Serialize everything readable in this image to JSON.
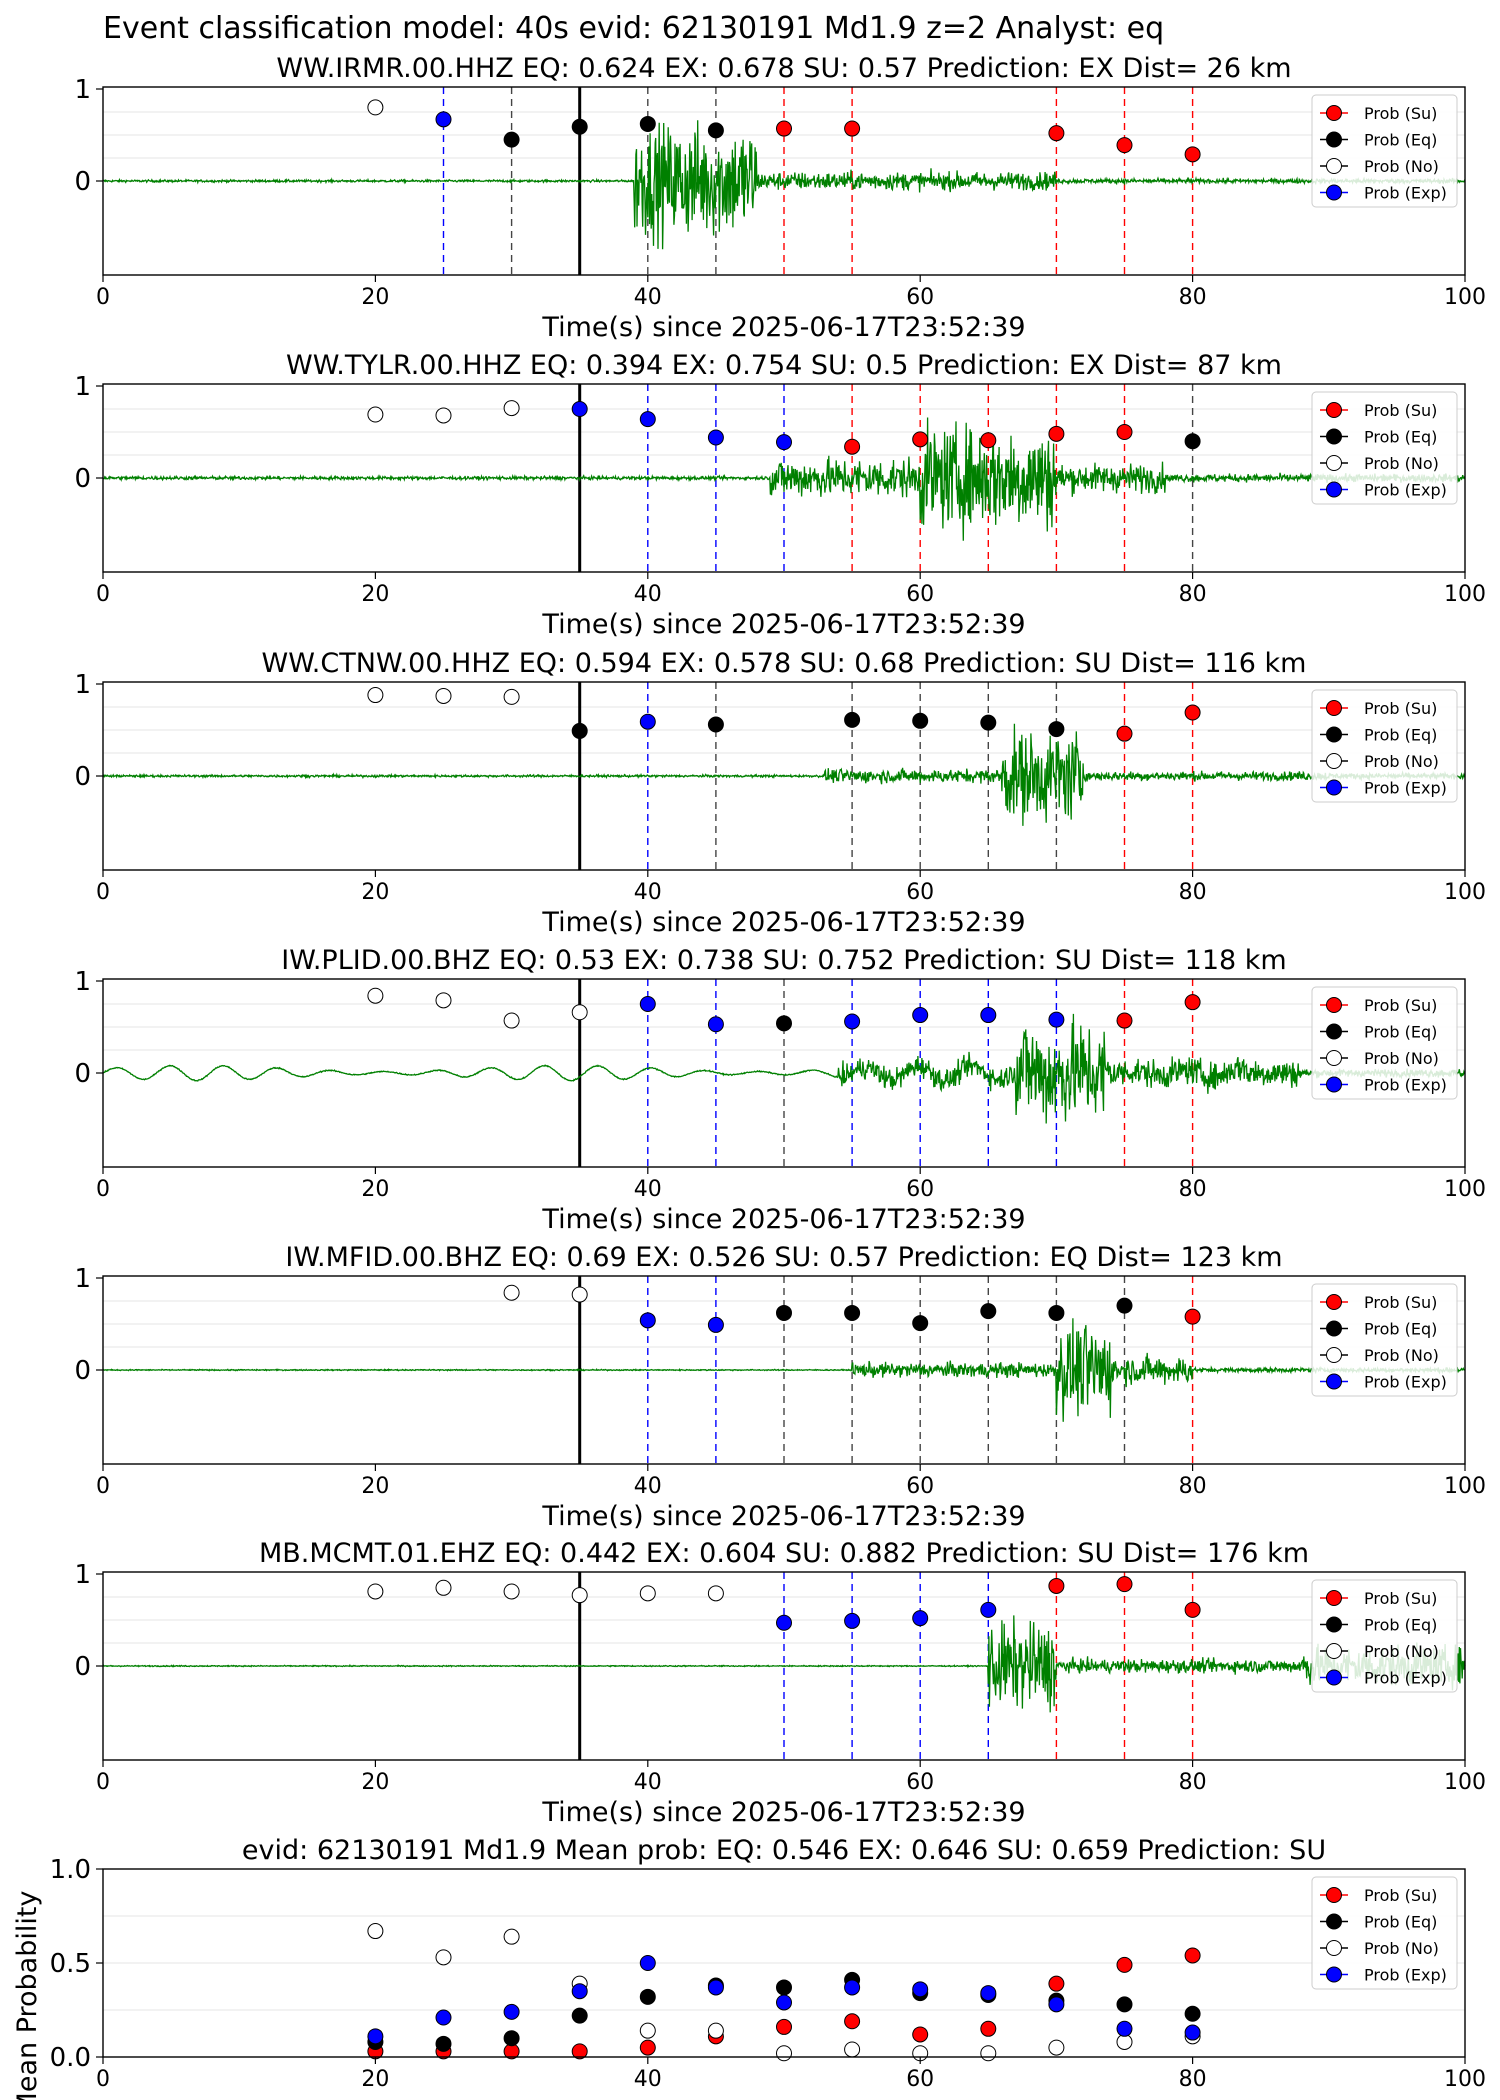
{
  "figure": {
    "title": "Event classification model: 40s evid: 62130191 Md1.9 z=2 Analyst: eq",
    "time_label": "Time(s) since 2025-06-17T23:52:39",
    "legend": [
      "Prob (Su)",
      "Prob (Eq)",
      "Prob (No)",
      "Prob (Exp)"
    ],
    "colors": {
      "su": "#ff0000",
      "eq": "#000000",
      "no": "#ffffff",
      "exp": "#0000ff",
      "trace": "#008000",
      "grid": "#e6e6e6"
    }
  },
  "chart_data": [
    {
      "type": "scatter",
      "title": "WW.IRMR.00.HHZ   EQ: 0.624  EX: 0.678  SU: 0.57   Prediction: EX    Dist= 26 km",
      "xlim": [
        0,
        100
      ],
      "x_ticks": [
        0,
        20,
        40,
        60,
        80,
        100
      ],
      "y_ticks": [
        "1",
        "0"
      ],
      "pick_time": 35,
      "trace": {
        "onset": 39,
        "noise": 0.02,
        "regions": [
          {
            "start": 39,
            "end": 48,
            "amp": 1.0
          },
          {
            "start": 48,
            "end": 70,
            "amp": 0.16
          },
          {
            "start": 70,
            "end": 100,
            "amp": 0.04
          }
        ]
      },
      "points": [
        {
          "x": 20,
          "cls": "no",
          "y": 0.8
        },
        {
          "x": 25,
          "cls": "exp",
          "y": 0.67
        },
        {
          "x": 30,
          "cls": "eq",
          "y": 0.45
        },
        {
          "x": 35,
          "cls": "eq",
          "y": 0.59
        },
        {
          "x": 40,
          "cls": "eq",
          "y": 0.62
        },
        {
          "x": 45,
          "cls": "eq",
          "y": 0.55
        },
        {
          "x": 50,
          "cls": "su",
          "y": 0.57
        },
        {
          "x": 55,
          "cls": "su",
          "y": 0.57
        },
        {
          "x": 70,
          "cls": "su",
          "y": 0.52
        },
        {
          "x": 75,
          "cls": "su",
          "y": 0.39
        },
        {
          "x": 80,
          "cls": "su",
          "y": 0.29
        }
      ]
    },
    {
      "type": "scatter",
      "title": "WW.TYLR.00.HHZ   EQ: 0.394  EX: 0.754  SU: 0.5   Prediction: EX    Dist= 87 km",
      "xlim": [
        0,
        100
      ],
      "x_ticks": [
        0,
        20,
        40,
        60,
        80,
        100
      ],
      "y_ticks": [
        "1",
        "0"
      ],
      "pick_time": 35,
      "trace": {
        "onset": 49,
        "noise": 0.03,
        "regions": [
          {
            "start": 49,
            "end": 60,
            "amp": 0.35
          },
          {
            "start": 60,
            "end": 70,
            "amp": 0.9
          },
          {
            "start": 70,
            "end": 78,
            "amp": 0.25
          },
          {
            "start": 78,
            "end": 100,
            "amp": 0.07
          }
        ]
      },
      "points": [
        {
          "x": 20,
          "cls": "no",
          "y": 0.69
        },
        {
          "x": 25,
          "cls": "no",
          "y": 0.68
        },
        {
          "x": 30,
          "cls": "no",
          "y": 0.76
        },
        {
          "x": 35,
          "cls": "exp",
          "y": 0.75
        },
        {
          "x": 40,
          "cls": "exp",
          "y": 0.64
        },
        {
          "x": 45,
          "cls": "exp",
          "y": 0.44
        },
        {
          "x": 50,
          "cls": "exp",
          "y": 0.39
        },
        {
          "x": 55,
          "cls": "su",
          "y": 0.34
        },
        {
          "x": 60,
          "cls": "su",
          "y": 0.42
        },
        {
          "x": 65,
          "cls": "su",
          "y": 0.41
        },
        {
          "x": 70,
          "cls": "su",
          "y": 0.48
        },
        {
          "x": 75,
          "cls": "su",
          "y": 0.5
        },
        {
          "x": 80,
          "cls": "eq",
          "y": 0.4
        }
      ]
    },
    {
      "type": "scatter",
      "title": "WW.CTNW.00.HHZ   EQ: 0.594  EX: 0.578  SU: 0.68   Prediction: SU    Dist= 116 km",
      "xlim": [
        0,
        100
      ],
      "x_ticks": [
        0,
        20,
        40,
        60,
        80,
        100
      ],
      "y_ticks": [
        "1",
        "0"
      ],
      "pick_time": 35,
      "trace": {
        "onset": 53,
        "noise": 0.02,
        "regions": [
          {
            "start": 53,
            "end": 66,
            "amp": 0.12
          },
          {
            "start": 66,
            "end": 72,
            "amp": 0.8
          },
          {
            "start": 72,
            "end": 90,
            "amp": 0.08
          },
          {
            "start": 90,
            "end": 100,
            "amp": 0.05
          }
        ]
      },
      "points": [
        {
          "x": 20,
          "cls": "no",
          "y": 0.88
        },
        {
          "x": 25,
          "cls": "no",
          "y": 0.87
        },
        {
          "x": 30,
          "cls": "no",
          "y": 0.86
        },
        {
          "x": 35,
          "cls": "eq",
          "y": 0.49
        },
        {
          "x": 40,
          "cls": "exp",
          "y": 0.59
        },
        {
          "x": 45,
          "cls": "eq",
          "y": 0.56
        },
        {
          "x": 55,
          "cls": "eq",
          "y": 0.61
        },
        {
          "x": 60,
          "cls": "eq",
          "y": 0.6
        },
        {
          "x": 65,
          "cls": "eq",
          "y": 0.58
        },
        {
          "x": 70,
          "cls": "eq",
          "y": 0.51
        },
        {
          "x": 75,
          "cls": "su",
          "y": 0.46
        },
        {
          "x": 80,
          "cls": "su",
          "y": 0.69
        }
      ]
    },
    {
      "type": "scatter",
      "title": "IW.PLID.00.BHZ   EQ: 0.53  EX: 0.738  SU: 0.752   Prediction: SU    Dist= 118 km",
      "xlim": [
        0,
        100
      ],
      "x_ticks": [
        0,
        20,
        40,
        60,
        80,
        100
      ],
      "y_ticks": [
        "1",
        "0"
      ],
      "pick_time": 35,
      "trace": {
        "onset": 54,
        "noise": 0.01,
        "wave": 0.08,
        "regions": [
          {
            "start": 54,
            "end": 67,
            "amp": 0.2
          },
          {
            "start": 67,
            "end": 74,
            "amp": 0.9
          },
          {
            "start": 74,
            "end": 88,
            "amp": 0.25
          },
          {
            "start": 88,
            "end": 100,
            "amp": 0.07
          }
        ]
      },
      "points": [
        {
          "x": 20,
          "cls": "no",
          "y": 0.84
        },
        {
          "x": 25,
          "cls": "no",
          "y": 0.79
        },
        {
          "x": 30,
          "cls": "no",
          "y": 0.57
        },
        {
          "x": 35,
          "cls": "no",
          "y": 0.66
        },
        {
          "x": 40,
          "cls": "exp",
          "y": 0.75
        },
        {
          "x": 45,
          "cls": "exp",
          "y": 0.53
        },
        {
          "x": 50,
          "cls": "eq",
          "y": 0.54
        },
        {
          "x": 55,
          "cls": "exp",
          "y": 0.56
        },
        {
          "x": 60,
          "cls": "exp",
          "y": 0.63
        },
        {
          "x": 65,
          "cls": "exp",
          "y": 0.63
        },
        {
          "x": 70,
          "cls": "exp",
          "y": 0.58
        },
        {
          "x": 75,
          "cls": "su",
          "y": 0.57
        },
        {
          "x": 80,
          "cls": "su",
          "y": 0.77
        }
      ]
    },
    {
      "type": "scatter",
      "title": "IW.MFID.00.BHZ   EQ: 0.69  EX: 0.526  SU: 0.57   Prediction: EQ    Dist= 123 km",
      "xlim": [
        0,
        100
      ],
      "x_ticks": [
        0,
        20,
        40,
        60,
        80,
        100
      ],
      "y_ticks": [
        "1",
        "0"
      ],
      "pick_time": 35,
      "trace": {
        "onset": 55,
        "noise": 0.01,
        "regions": [
          {
            "start": 55,
            "end": 70,
            "amp": 0.13
          },
          {
            "start": 70,
            "end": 74,
            "amp": 0.8
          },
          {
            "start": 74,
            "end": 80,
            "amp": 0.25
          },
          {
            "start": 80,
            "end": 100,
            "amp": 0.04
          }
        ]
      },
      "points": [
        {
          "x": 30,
          "cls": "no",
          "y": 0.84
        },
        {
          "x": 35,
          "cls": "no",
          "y": 0.82
        },
        {
          "x": 40,
          "cls": "exp",
          "y": 0.54
        },
        {
          "x": 45,
          "cls": "exp",
          "y": 0.49
        },
        {
          "x": 50,
          "cls": "eq",
          "y": 0.62
        },
        {
          "x": 55,
          "cls": "eq",
          "y": 0.62
        },
        {
          "x": 60,
          "cls": "eq",
          "y": 0.51
        },
        {
          "x": 65,
          "cls": "eq",
          "y": 0.64
        },
        {
          "x": 70,
          "cls": "eq",
          "y": 0.62
        },
        {
          "x": 75,
          "cls": "eq",
          "y": 0.7
        },
        {
          "x": 80,
          "cls": "su",
          "y": 0.58
        }
      ]
    },
    {
      "type": "scatter",
      "title": "MB.MCMT.01.EHZ   EQ: 0.442  EX: 0.604  SU: 0.882   Prediction: SU    Dist= 176 km",
      "xlim": [
        0,
        100
      ],
      "x_ticks": [
        0,
        20,
        40,
        60,
        80,
        100
      ],
      "y_ticks": [
        "1",
        "0"
      ],
      "pick_time": 35,
      "trace": {
        "onset": 65,
        "noise": 0.01,
        "regions": [
          {
            "start": 65,
            "end": 70,
            "amp": 0.75
          },
          {
            "start": 70,
            "end": 88,
            "amp": 0.12
          },
          {
            "start": 88,
            "end": 100,
            "amp": 0.35
          }
        ]
      },
      "points": [
        {
          "x": 20,
          "cls": "no",
          "y": 0.81
        },
        {
          "x": 25,
          "cls": "no",
          "y": 0.85
        },
        {
          "x": 30,
          "cls": "no",
          "y": 0.81
        },
        {
          "x": 35,
          "cls": "no",
          "y": 0.77
        },
        {
          "x": 40,
          "cls": "no",
          "y": 0.79
        },
        {
          "x": 45,
          "cls": "no",
          "y": 0.79
        },
        {
          "x": 50,
          "cls": "exp",
          "y": 0.47
        },
        {
          "x": 55,
          "cls": "exp",
          "y": 0.49
        },
        {
          "x": 60,
          "cls": "exp",
          "y": 0.52
        },
        {
          "x": 65,
          "cls": "exp",
          "y": 0.61
        },
        {
          "x": 70,
          "cls": "su",
          "y": 0.87
        },
        {
          "x": 75,
          "cls": "su",
          "y": 0.89
        },
        {
          "x": 80,
          "cls": "su",
          "y": 0.61
        }
      ]
    },
    {
      "type": "scatter",
      "title": "evid: 62130191  Md1.9   Mean prob:   EQ: 0.546  EX: 0.646  SU: 0.659   Prediction: SU",
      "ylabel": "Mean Probability",
      "xlim": [
        0,
        100
      ],
      "ylim": [
        0,
        1
      ],
      "x_ticks": [
        0,
        20,
        40,
        60,
        80,
        100
      ],
      "y_ticks": [
        "0.0",
        "0.5",
        "1.0"
      ],
      "series": [
        {
          "cls": "su",
          "x": [
            20,
            25,
            30,
            35,
            40,
            45,
            50,
            55,
            60,
            65,
            70,
            75,
            80
          ],
          "y": [
            0.03,
            0.03,
            0.03,
            0.03,
            0.05,
            0.11,
            0.16,
            0.19,
            0.12,
            0.15,
            0.39,
            0.49,
            0.54
          ]
        },
        {
          "cls": "eq",
          "x": [
            20,
            25,
            30,
            35,
            40,
            45,
            50,
            55,
            60,
            65,
            70,
            75,
            80
          ],
          "y": [
            0.08,
            0.07,
            0.1,
            0.22,
            0.32,
            0.38,
            0.37,
            0.41,
            0.34,
            0.33,
            0.3,
            0.28,
            0.23
          ]
        },
        {
          "cls": "no",
          "x": [
            20,
            25,
            30,
            35,
            40,
            45,
            50,
            55,
            60,
            65,
            70,
            75,
            80
          ],
          "y": [
            0.67,
            0.53,
            0.64,
            0.39,
            0.14,
            0.14,
            0.02,
            0.04,
            0.02,
            0.02,
            0.05,
            0.08,
            0.11
          ]
        },
        {
          "cls": "exp",
          "x": [
            20,
            25,
            30,
            35,
            40,
            45,
            50,
            55,
            60,
            65,
            70,
            75,
            80
          ],
          "y": [
            0.11,
            0.21,
            0.24,
            0.35,
            0.5,
            0.37,
            0.29,
            0.37,
            0.36,
            0.34,
            0.28,
            0.15,
            0.13
          ]
        }
      ]
    }
  ]
}
